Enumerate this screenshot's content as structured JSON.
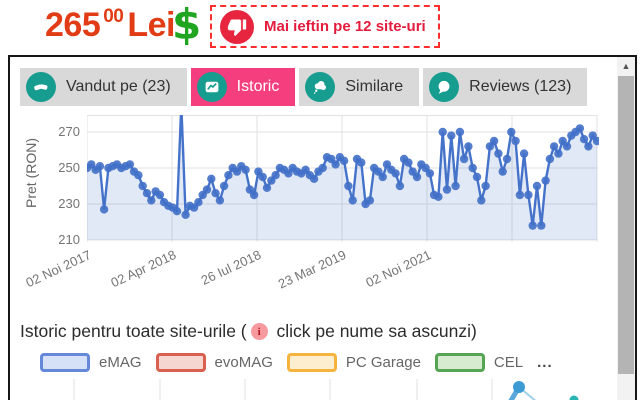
{
  "header": {
    "price_whole": "265",
    "price_cents": "00",
    "currency": "Lei",
    "dollar_symbol": "$",
    "price_color": "#e23c16",
    "dollar_color": "#1fa51f",
    "alert": {
      "label": "Mai ieftin pe 12 site-uri",
      "text_color": "#e31c3d",
      "circle_color": "#e8253f",
      "icon": "thumbs-down-icon"
    }
  },
  "tab_colors": {
    "active_bg": "#f43e7d",
    "inactive_bg": "#d9d9d9",
    "icon_circle": "#169d8f"
  },
  "tabs": [
    {
      "label": "Vandut pe (23)",
      "icon": "handshake-icon",
      "active": false
    },
    {
      "label": "Istoric",
      "icon": "line-chart-icon",
      "active": true
    },
    {
      "label": "Similare",
      "icon": "thought-bubble-icon",
      "active": false
    },
    {
      "label": "Reviews (123)",
      "icon": "speech-bubble-icon",
      "active": false
    }
  ],
  "chart_data": {
    "type": "line",
    "title": "",
    "ylabel": "Pret (RON)",
    "xlabel": "",
    "y_ticks": [
      210,
      230,
      250,
      270
    ],
    "ylim": [
      210,
      278
    ],
    "grid": true,
    "x_tick_labels": [
      "02 Noi 2017",
      "02 Apr 2018",
      "26 Iul 2018",
      "23 Mar 2019",
      "02 Noi 2021"
    ],
    "series": [
      {
        "name": "Pret eMAG",
        "values": [
          250,
          252,
          249,
          251,
          227,
          250,
          251,
          252,
          250,
          251,
          252,
          248,
          246,
          240,
          236,
          232,
          237,
          235,
          231,
          229,
          228,
          226,
          285,
          224,
          229,
          228,
          231,
          235,
          238,
          244,
          236,
          232,
          240,
          246,
          250,
          248,
          251,
          249,
          238,
          235,
          248,
          245,
          239,
          243,
          246,
          250,
          249,
          247,
          250,
          248,
          247,
          249,
          246,
          244,
          248,
          250,
          256,
          255,
          252,
          256,
          254,
          240,
          232,
          255,
          253,
          230,
          232,
          250,
          248,
          245,
          252,
          249,
          247,
          240,
          255,
          253,
          248,
          245,
          252,
          250,
          247,
          235,
          234,
          270,
          238,
          268,
          240,
          270,
          255,
          262,
          250,
          245,
          232,
          240,
          262,
          265,
          258,
          248,
          255,
          270,
          265,
          235,
          258,
          235,
          218,
          240,
          218,
          243,
          255,
          262,
          258,
          265,
          262,
          268,
          270,
          272,
          266,
          262,
          268,
          265
        ]
      }
    ],
    "line_color": "#4573ca",
    "marker_color": "#4170c8",
    "fill_color": "#4472c8",
    "fill_opacity": 0.16
  },
  "caption": {
    "text_before": "Istoric pentru toate site-urile (",
    "info_icon_glyph": "i",
    "text_after": " click pe nume sa ascunzi)"
  },
  "legend": {
    "items": [
      {
        "label": "eMAG",
        "border": "#6588d8",
        "fill": "#d6e0f6"
      },
      {
        "label": "evoMAG",
        "border": "#d95f4e",
        "fill": "#f5d6d0"
      },
      {
        "label": "PC Garage",
        "border": "#f5b43e",
        "fill": "#fdeecf"
      },
      {
        "label": "CEL",
        "border": "#55a555",
        "fill": "#d7ebd1"
      }
    ],
    "more_label": "..."
  },
  "scrollbar": {
    "up_arrow_glyph": "▲"
  }
}
